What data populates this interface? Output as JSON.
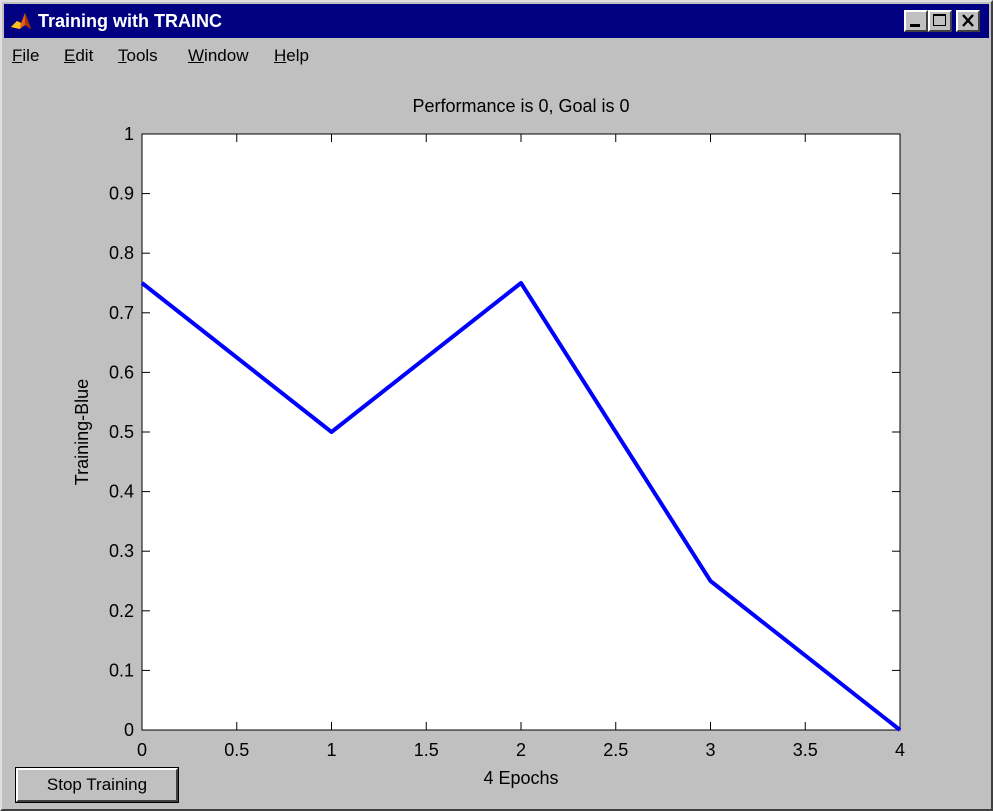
{
  "window": {
    "title": "Training with TRAINC",
    "buttons": {
      "minimize": "minimize-icon",
      "maximize": "maximize-icon",
      "close": "close-icon"
    }
  },
  "menu": [
    {
      "label": "File",
      "accel": "F",
      "rest": "ile"
    },
    {
      "label": "Edit",
      "accel": "E",
      "rest": "dit"
    },
    {
      "label": "Tools",
      "accel": "T",
      "rest": "ools"
    },
    {
      "label": "Window",
      "accel": "W",
      "rest": "indow"
    },
    {
      "label": "Help",
      "accel": "H",
      "rest": "elp"
    }
  ],
  "stop_button": {
    "label": "Stop Training"
  },
  "colors": {
    "titlebar": "#000080",
    "window_bg": "#c0c0c0",
    "line": "#0000ff",
    "axes_bg": "#ffffff"
  },
  "chart_data": {
    "type": "line",
    "title": "Performance is 0, Goal is 0",
    "xlabel": "4 Epochs",
    "ylabel": "Training-Blue",
    "xlim": [
      0,
      4
    ],
    "ylim": [
      0,
      1
    ],
    "xticks": [
      0,
      0.5,
      1,
      1.5,
      2,
      2.5,
      3,
      3.5,
      4
    ],
    "xtick_labels": [
      "0",
      "0.5",
      "1",
      "1.5",
      "2",
      "2.5",
      "3",
      "3.5",
      "4"
    ],
    "yticks": [
      0,
      0.1,
      0.2,
      0.3,
      0.4,
      0.5,
      0.6,
      0.7,
      0.8,
      0.9,
      1
    ],
    "ytick_labels": [
      "0",
      "0.1",
      "0.2",
      "0.3",
      "0.4",
      "0.5",
      "0.6",
      "0.7",
      "0.8",
      "0.9",
      "1"
    ],
    "grid": false,
    "series": [
      {
        "x": [
          0,
          1,
          2,
          3,
          4
        ],
        "values": [
          0.75,
          0.5,
          0.75,
          0.25,
          0
        ],
        "color": "#0000ff"
      }
    ]
  }
}
